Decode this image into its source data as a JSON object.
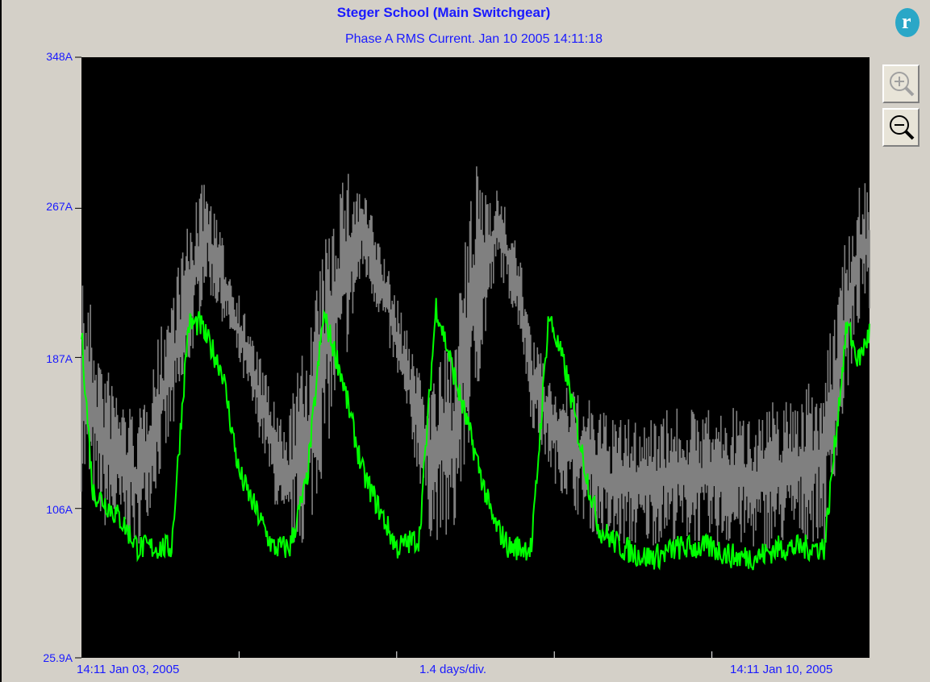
{
  "chart_data": {
    "type": "line",
    "title": "Steger School (Main Switchgear)",
    "subtitle": "Phase A RMS Current. Jan 10 2005 14:11:18",
    "yticks": [
      "348A",
      "267A",
      "187A",
      "106A",
      "25.9A"
    ],
    "ylim": [
      25.9,
      348
    ],
    "xlabels": {
      "start": "14:11 Jan 03, 2005",
      "scale": "1.4 days/div.",
      "end": "14:11 Jan 10, 2005"
    },
    "x_divisions": 5,
    "series": [
      {
        "color": "#808080",
        "x": [
          0,
          0.2,
          0.5,
          0.9,
          1.1,
          1.3,
          1.6,
          1.8,
          2.0,
          2.3,
          2.5,
          2.7,
          2.9,
          3.1,
          3.3,
          3.5,
          3.7,
          3.9,
          4.0,
          4.2,
          4.5,
          4.7,
          5.0,
          5.2,
          5.4,
          5.6,
          5.8,
          6.0,
          6.2,
          6.4,
          6.6,
          6.8,
          6.95,
          7.0
        ],
        "min": [
          115,
          95,
          85,
          160,
          225,
          200,
          140,
          85,
          85,
          170,
          230,
          200,
          150,
          90,
          85,
          160,
          235,
          200,
          150,
          120,
          95,
          85,
          85,
          88,
          88,
          85,
          85,
          83,
          85,
          88,
          88,
          165,
          220,
          195
        ],
        "max": [
          240,
          185,
          155,
          250,
          285,
          240,
          185,
          150,
          200,
          290,
          280,
          240,
          200,
          175,
          200,
          290,
          280,
          240,
          200,
          175,
          165,
          155,
          155,
          160,
          160,
          160,
          160,
          160,
          165,
          170,
          180,
          260,
          285,
          280
        ]
      },
      {
        "color": "#00ff00",
        "x": [
          0,
          0.1,
          0.2,
          0.35,
          0.5,
          0.65,
          0.8,
          0.95,
          1.05,
          1.25,
          1.4,
          1.55,
          1.7,
          1.85,
          2.0,
          2.15,
          2.3,
          2.5,
          2.65,
          2.8,
          3.0,
          3.15,
          3.3,
          3.5,
          3.65,
          3.8,
          4.0,
          4.15,
          4.3,
          4.5,
          4.6,
          4.8,
          5.0,
          5.1,
          5.3,
          5.5,
          5.6,
          5.8,
          6.0,
          6.2,
          6.4,
          6.6,
          6.8,
          6.9,
          7.0
        ],
        "values": [
          200,
          115,
          110,
          100,
          85,
          85,
          85,
          205,
          205,
          180,
          125,
          105,
          85,
          85,
          120,
          210,
          180,
          125,
          105,
          85,
          90,
          215,
          180,
          135,
          100,
          85,
          85,
          210,
          180,
          120,
          95,
          85,
          80,
          80,
          85,
          85,
          85,
          80,
          80,
          85,
          85,
          85,
          205,
          185,
          200
        ]
      }
    ]
  }
}
